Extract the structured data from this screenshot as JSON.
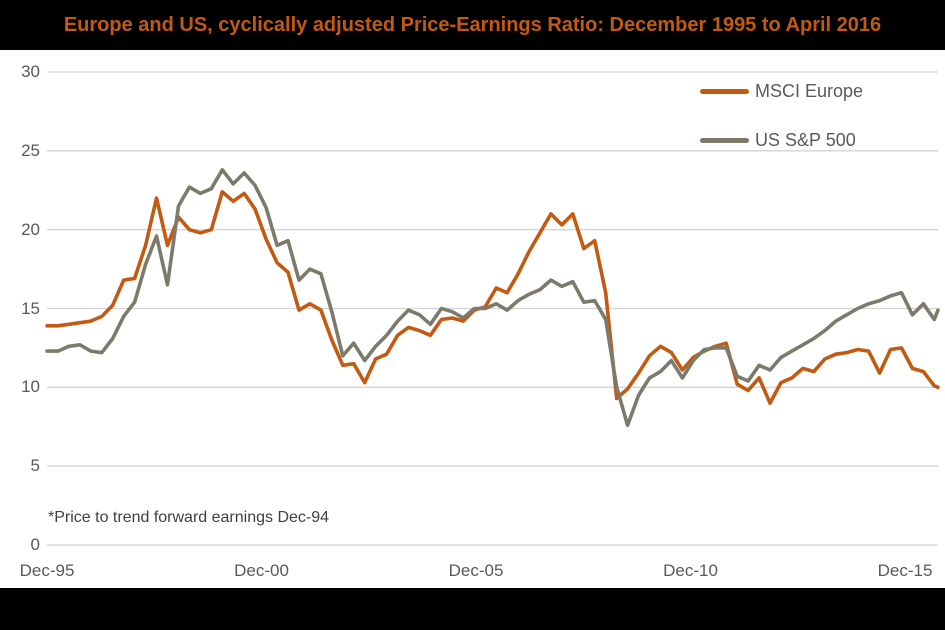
{
  "header": {
    "title": "Europe and US, cyclically adjusted Price-Earnings Ratio: December 1995 to April 2016"
  },
  "footnote": "*Price to trend forward earnings Dec-94",
  "colors": {
    "title_text": "#C45911",
    "title_bg": "#000000",
    "axis_text": "#595959",
    "footnote_text": "#3F3F3F",
    "gridline": "#D4D4D4",
    "msci_europe": "#C45911",
    "us_sp500": "#7C7B6B"
  },
  "chart_data": {
    "type": "line",
    "title": "Europe and US, cyclically adjusted Price-Earnings Ratio: December 1995 to April 2016",
    "xlabel": "",
    "ylabel": "",
    "ylim": [
      0,
      30
    ],
    "y_ticks": [
      0,
      5,
      10,
      15,
      20,
      25,
      30
    ],
    "x_tick_labels": [
      "Dec-95",
      "Dec-00",
      "Dec-05",
      "Dec-10",
      "Dec-15"
    ],
    "x_unit": "months since Dec-1995 (quarterly samples, last point Apr-2016)",
    "grid": "horizontal",
    "legend_position": "top-right",
    "x": [
      0,
      3,
      6,
      9,
      12,
      15,
      18,
      21,
      24,
      27,
      30,
      33,
      36,
      39,
      42,
      45,
      48,
      51,
      54,
      57,
      60,
      63,
      66,
      69,
      72,
      75,
      78,
      81,
      84,
      87,
      90,
      93,
      96,
      99,
      102,
      105,
      108,
      111,
      114,
      117,
      120,
      123,
      126,
      129,
      132,
      135,
      138,
      141,
      144,
      147,
      150,
      153,
      156,
      159,
      162,
      165,
      168,
      171,
      174,
      177,
      180,
      183,
      186,
      189,
      192,
      195,
      198,
      201,
      204,
      207,
      210,
      213,
      216,
      219,
      222,
      225,
      228,
      231,
      234,
      237,
      240,
      243,
      244
    ],
    "series": [
      {
        "name": "MSCI Europe",
        "color": "#C45911",
        "values": [
          13.9,
          13.9,
          14.0,
          14.1,
          14.2,
          14.5,
          15.2,
          16.8,
          16.9,
          19.0,
          22.0,
          19.0,
          20.8,
          20.0,
          19.8,
          20.0,
          22.4,
          21.8,
          22.3,
          21.3,
          19.4,
          17.9,
          17.3,
          14.9,
          15.3,
          14.9,
          13.0,
          11.4,
          11.5,
          10.3,
          11.8,
          12.1,
          13.3,
          13.8,
          13.6,
          13.3,
          14.3,
          14.4,
          14.2,
          14.9,
          15.1,
          16.3,
          16.0,
          17.2,
          18.6,
          19.8,
          21.0,
          20.3,
          21.0,
          18.8,
          19.3,
          16.0,
          9.3,
          9.9,
          10.9,
          12.0,
          12.6,
          12.2,
          11.1,
          11.9,
          12.3,
          12.6,
          12.8,
          10.2,
          9.8,
          10.6,
          9.0,
          10.3,
          10.6,
          11.2,
          11.0,
          11.8,
          12.1,
          12.2,
          12.4,
          12.3,
          10.9,
          12.4,
          12.5,
          11.2,
          11.0,
          10.1,
          10.0
        ]
      },
      {
        "name": "US S&P 500",
        "color": "#7C7B6B",
        "values": [
          12.3,
          12.3,
          12.6,
          12.7,
          12.3,
          12.2,
          13.1,
          14.5,
          15.4,
          17.8,
          19.6,
          16.5,
          21.5,
          22.7,
          22.3,
          22.6,
          23.8,
          22.9,
          23.6,
          22.8,
          21.4,
          19.0,
          19.3,
          16.8,
          17.5,
          17.2,
          14.8,
          12.0,
          12.8,
          11.7,
          12.6,
          13.3,
          14.2,
          14.9,
          14.6,
          14.0,
          15.0,
          14.8,
          14.4,
          15.0,
          15.0,
          15.3,
          14.9,
          15.5,
          15.9,
          16.2,
          16.8,
          16.4,
          16.7,
          15.4,
          15.5,
          14.3,
          10.0,
          7.6,
          9.5,
          10.6,
          11.0,
          11.7,
          10.6,
          11.7,
          12.4,
          12.5,
          12.5,
          10.7,
          10.4,
          11.4,
          11.1,
          11.9,
          12.3,
          12.7,
          13.1,
          13.6,
          14.2,
          14.6,
          15.0,
          15.3,
          15.5,
          15.8,
          16.0,
          14.6,
          15.3,
          14.3,
          14.9
        ]
      }
    ]
  }
}
